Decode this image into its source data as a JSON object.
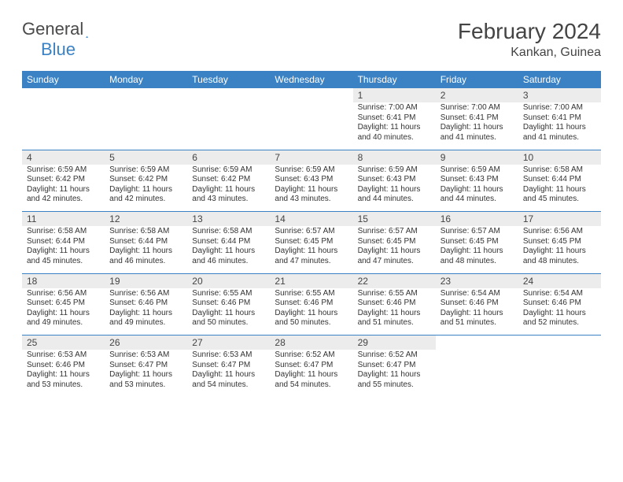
{
  "logo": {
    "text1": "General",
    "text2": "Blue",
    "icon_color": "#3b82c4",
    "text1_color": "#4a4a4a",
    "text2_color": "#3b82c4"
  },
  "header": {
    "month_title": "February 2024",
    "location": "Kankan, Guinea"
  },
  "colors": {
    "header_bg": "#3b82c4",
    "header_text": "#ffffff",
    "daynum_bg": "#ececec",
    "border": "#3b82c4",
    "body_text": "#333333"
  },
  "weekdays": [
    "Sunday",
    "Monday",
    "Tuesday",
    "Wednesday",
    "Thursday",
    "Friday",
    "Saturday"
  ],
  "weeks": [
    [
      null,
      null,
      null,
      null,
      {
        "n": "1",
        "sr": "Sunrise: 7:00 AM",
        "ss": "Sunset: 6:41 PM",
        "d1": "Daylight: 11 hours",
        "d2": "and 40 minutes."
      },
      {
        "n": "2",
        "sr": "Sunrise: 7:00 AM",
        "ss": "Sunset: 6:41 PM",
        "d1": "Daylight: 11 hours",
        "d2": "and 41 minutes."
      },
      {
        "n": "3",
        "sr": "Sunrise: 7:00 AM",
        "ss": "Sunset: 6:41 PM",
        "d1": "Daylight: 11 hours",
        "d2": "and 41 minutes."
      }
    ],
    [
      {
        "n": "4",
        "sr": "Sunrise: 6:59 AM",
        "ss": "Sunset: 6:42 PM",
        "d1": "Daylight: 11 hours",
        "d2": "and 42 minutes."
      },
      {
        "n": "5",
        "sr": "Sunrise: 6:59 AM",
        "ss": "Sunset: 6:42 PM",
        "d1": "Daylight: 11 hours",
        "d2": "and 42 minutes."
      },
      {
        "n": "6",
        "sr": "Sunrise: 6:59 AM",
        "ss": "Sunset: 6:42 PM",
        "d1": "Daylight: 11 hours",
        "d2": "and 43 minutes."
      },
      {
        "n": "7",
        "sr": "Sunrise: 6:59 AM",
        "ss": "Sunset: 6:43 PM",
        "d1": "Daylight: 11 hours",
        "d2": "and 43 minutes."
      },
      {
        "n": "8",
        "sr": "Sunrise: 6:59 AM",
        "ss": "Sunset: 6:43 PM",
        "d1": "Daylight: 11 hours",
        "d2": "and 44 minutes."
      },
      {
        "n": "9",
        "sr": "Sunrise: 6:59 AM",
        "ss": "Sunset: 6:43 PM",
        "d1": "Daylight: 11 hours",
        "d2": "and 44 minutes."
      },
      {
        "n": "10",
        "sr": "Sunrise: 6:58 AM",
        "ss": "Sunset: 6:44 PM",
        "d1": "Daylight: 11 hours",
        "d2": "and 45 minutes."
      }
    ],
    [
      {
        "n": "11",
        "sr": "Sunrise: 6:58 AM",
        "ss": "Sunset: 6:44 PM",
        "d1": "Daylight: 11 hours",
        "d2": "and 45 minutes."
      },
      {
        "n": "12",
        "sr": "Sunrise: 6:58 AM",
        "ss": "Sunset: 6:44 PM",
        "d1": "Daylight: 11 hours",
        "d2": "and 46 minutes."
      },
      {
        "n": "13",
        "sr": "Sunrise: 6:58 AM",
        "ss": "Sunset: 6:44 PM",
        "d1": "Daylight: 11 hours",
        "d2": "and 46 minutes."
      },
      {
        "n": "14",
        "sr": "Sunrise: 6:57 AM",
        "ss": "Sunset: 6:45 PM",
        "d1": "Daylight: 11 hours",
        "d2": "and 47 minutes."
      },
      {
        "n": "15",
        "sr": "Sunrise: 6:57 AM",
        "ss": "Sunset: 6:45 PM",
        "d1": "Daylight: 11 hours",
        "d2": "and 47 minutes."
      },
      {
        "n": "16",
        "sr": "Sunrise: 6:57 AM",
        "ss": "Sunset: 6:45 PM",
        "d1": "Daylight: 11 hours",
        "d2": "and 48 minutes."
      },
      {
        "n": "17",
        "sr": "Sunrise: 6:56 AM",
        "ss": "Sunset: 6:45 PM",
        "d1": "Daylight: 11 hours",
        "d2": "and 48 minutes."
      }
    ],
    [
      {
        "n": "18",
        "sr": "Sunrise: 6:56 AM",
        "ss": "Sunset: 6:45 PM",
        "d1": "Daylight: 11 hours",
        "d2": "and 49 minutes."
      },
      {
        "n": "19",
        "sr": "Sunrise: 6:56 AM",
        "ss": "Sunset: 6:46 PM",
        "d1": "Daylight: 11 hours",
        "d2": "and 49 minutes."
      },
      {
        "n": "20",
        "sr": "Sunrise: 6:55 AM",
        "ss": "Sunset: 6:46 PM",
        "d1": "Daylight: 11 hours",
        "d2": "and 50 minutes."
      },
      {
        "n": "21",
        "sr": "Sunrise: 6:55 AM",
        "ss": "Sunset: 6:46 PM",
        "d1": "Daylight: 11 hours",
        "d2": "and 50 minutes."
      },
      {
        "n": "22",
        "sr": "Sunrise: 6:55 AM",
        "ss": "Sunset: 6:46 PM",
        "d1": "Daylight: 11 hours",
        "d2": "and 51 minutes."
      },
      {
        "n": "23",
        "sr": "Sunrise: 6:54 AM",
        "ss": "Sunset: 6:46 PM",
        "d1": "Daylight: 11 hours",
        "d2": "and 51 minutes."
      },
      {
        "n": "24",
        "sr": "Sunrise: 6:54 AM",
        "ss": "Sunset: 6:46 PM",
        "d1": "Daylight: 11 hours",
        "d2": "and 52 minutes."
      }
    ],
    [
      {
        "n": "25",
        "sr": "Sunrise: 6:53 AM",
        "ss": "Sunset: 6:46 PM",
        "d1": "Daylight: 11 hours",
        "d2": "and 53 minutes."
      },
      {
        "n": "26",
        "sr": "Sunrise: 6:53 AM",
        "ss": "Sunset: 6:47 PM",
        "d1": "Daylight: 11 hours",
        "d2": "and 53 minutes."
      },
      {
        "n": "27",
        "sr": "Sunrise: 6:53 AM",
        "ss": "Sunset: 6:47 PM",
        "d1": "Daylight: 11 hours",
        "d2": "and 54 minutes."
      },
      {
        "n": "28",
        "sr": "Sunrise: 6:52 AM",
        "ss": "Sunset: 6:47 PM",
        "d1": "Daylight: 11 hours",
        "d2": "and 54 minutes."
      },
      {
        "n": "29",
        "sr": "Sunrise: 6:52 AM",
        "ss": "Sunset: 6:47 PM",
        "d1": "Daylight: 11 hours",
        "d2": "and 55 minutes."
      },
      null,
      null
    ]
  ]
}
